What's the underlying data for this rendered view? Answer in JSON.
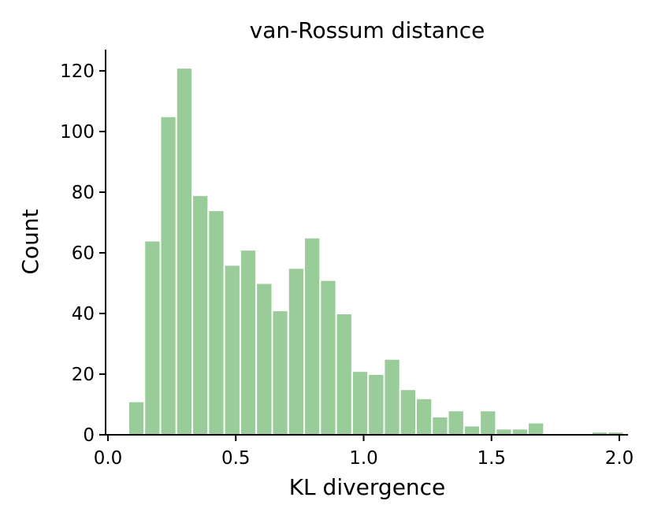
{
  "chart_data": {
    "type": "bar",
    "title": "van-Rossum distance",
    "xlabel": "KL divergence",
    "ylabel": "Count",
    "xlim": [
      0.0,
      2.05
    ],
    "ylim": [
      0,
      127
    ],
    "xticks": [
      0.0,
      0.5,
      1.0,
      1.5,
      2.0
    ],
    "xtick_labels": [
      "0.0",
      "0.5",
      "1.0",
      "1.5",
      "2.0"
    ],
    "yticks": [
      0,
      20,
      40,
      60,
      80,
      100,
      120
    ],
    "ytick_labels": [
      "0",
      "20",
      "40",
      "60",
      "80",
      "100",
      "120"
    ],
    "bin_start": 0.08,
    "bin_width": 0.0625,
    "values": [
      11,
      64,
      105,
      121,
      79,
      74,
      56,
      61,
      50,
      41,
      55,
      65,
      51,
      40,
      21,
      20,
      25,
      15,
      12,
      6,
      8,
      3,
      8,
      2,
      2,
      4,
      0,
      0,
      0,
      1,
      1
    ],
    "bar_color": "#99cc99",
    "grid": false,
    "legend": "none"
  }
}
